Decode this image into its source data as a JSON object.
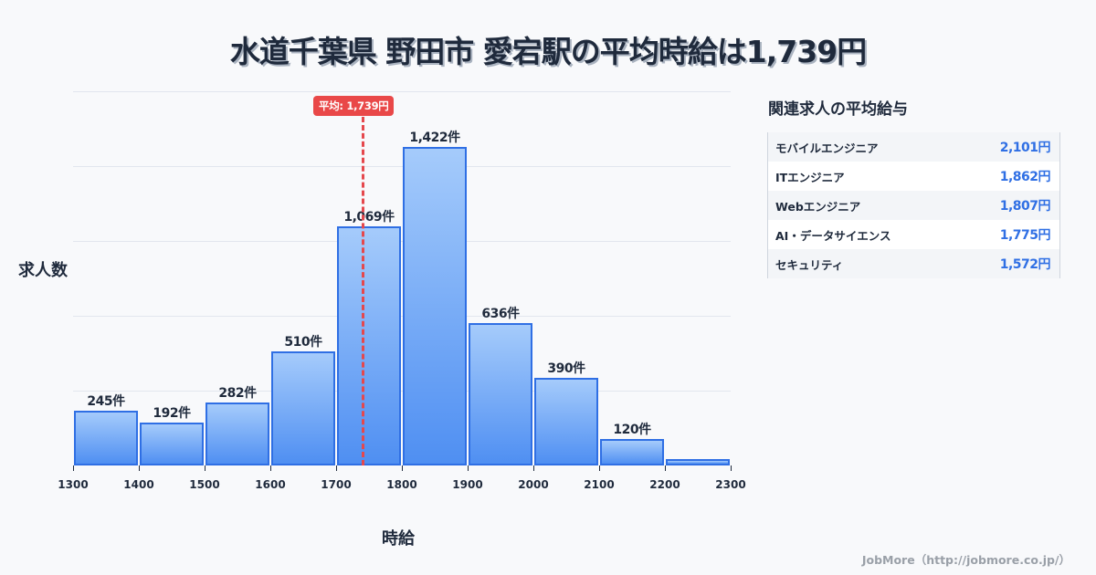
{
  "title": "水道千葉県 野田市 愛宕駅の平均時給は1,739円",
  "chart_data": {
    "type": "bar",
    "title": "水道千葉県 野田市 愛宕駅の平均時給は1,739円",
    "xlabel": "時給",
    "ylabel": "求人数",
    "bins": [
      [
        1300,
        1400
      ],
      [
        1400,
        1500
      ],
      [
        1500,
        1600
      ],
      [
        1600,
        1700
      ],
      [
        1700,
        1800
      ],
      [
        1800,
        1900
      ],
      [
        1900,
        2000
      ],
      [
        2000,
        2100
      ],
      [
        2100,
        2200
      ],
      [
        2200,
        2300
      ]
    ],
    "categories": [
      "1300-1400",
      "1400-1500",
      "1500-1600",
      "1600-1700",
      "1700-1800",
      "1800-1900",
      "1900-2000",
      "2000-2100",
      "2100-2200",
      "2200-2300"
    ],
    "values": [
      245,
      192,
      282,
      510,
      1069,
      1422,
      636,
      390,
      120,
      30
    ],
    "value_labels": [
      "245件",
      "192件",
      "282件",
      "510件",
      "1,069件",
      "1,422件",
      "636件",
      "390件",
      "120件",
      ""
    ],
    "x_ticks": [
      "1300",
      "1400",
      "1500",
      "1600",
      "1700",
      "1800",
      "1900",
      "2000",
      "2100",
      "2200",
      "2300"
    ],
    "xlim": [
      1300,
      2300
    ],
    "ylim": [
      0,
      1670
    ],
    "grid": true,
    "average": {
      "value": 1739,
      "label": "平均: 1,739円"
    }
  },
  "side_panel": {
    "title": "関連求人の平均給与",
    "rows": [
      {
        "name": "モバイルエンジニア",
        "value": "2,101円"
      },
      {
        "name": "ITエンジニア",
        "value": "1,862円"
      },
      {
        "name": "Webエンジニア",
        "value": "1,807円"
      },
      {
        "name": "AI・データサイエンス",
        "value": "1,775円"
      },
      {
        "name": "セキュリティ",
        "value": "1,572円"
      }
    ]
  },
  "footer": "JobMore（http://jobmore.co.jp/）"
}
